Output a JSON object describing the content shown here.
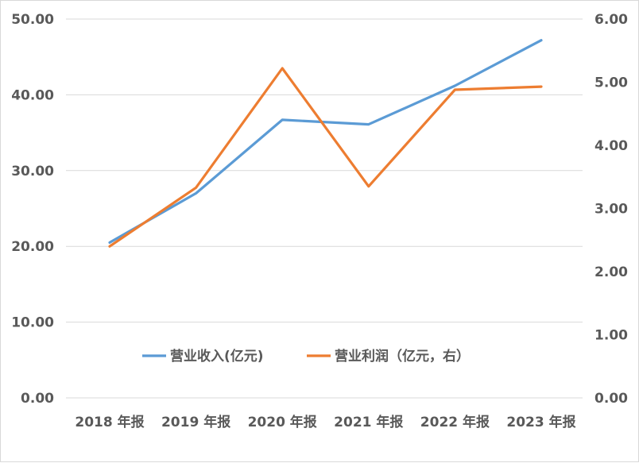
{
  "chart_data": {
    "type": "line",
    "categories": [
      "2018 年报",
      "2019 年报",
      "2020 年报",
      "2021 年报",
      "2022 年报",
      "2023 年报"
    ],
    "series": [
      {
        "name": "营业收入(亿元)",
        "axis": "left",
        "color": "#5b9bd5",
        "values": [
          20.5,
          27.0,
          36.7,
          36.1,
          41.2,
          47.2
        ]
      },
      {
        "name": "营业利润（亿元，右）",
        "axis": "right",
        "color": "#ed7d31",
        "values": [
          2.4,
          3.33,
          5.22,
          3.35,
          4.88,
          4.93
        ]
      }
    ],
    "y_left": {
      "ylim": [
        0,
        50
      ],
      "ticks": [
        "0.00",
        "10.00",
        "20.00",
        "30.00",
        "40.00",
        "50.00"
      ]
    },
    "y_right": {
      "ylim": [
        0,
        6
      ],
      "ticks": [
        "0.00",
        "1.00",
        "2.00",
        "3.00",
        "4.00",
        "5.00",
        "6.00"
      ]
    },
    "grid": true,
    "legend_position": "inside-bottom-center"
  }
}
